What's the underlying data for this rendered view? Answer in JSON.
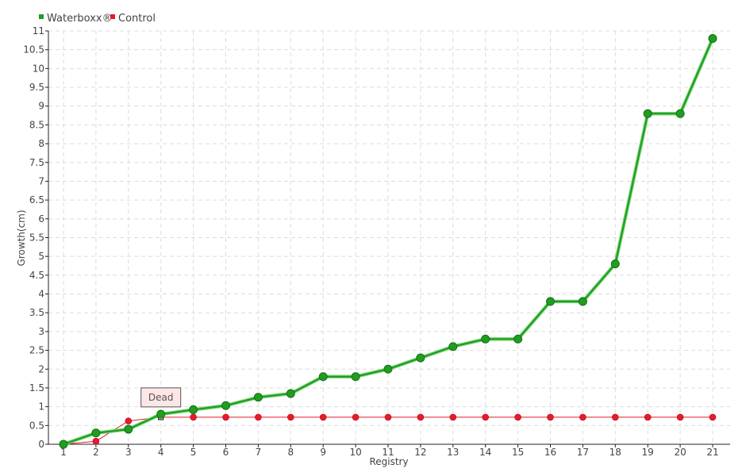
{
  "chart_data": {
    "type": "line",
    "xlabel": "Registry",
    "ylabel": "Growth(cm)",
    "x": [
      1,
      2,
      3,
      4,
      5,
      6,
      7,
      8,
      9,
      10,
      11,
      12,
      13,
      14,
      15,
      16,
      17,
      18,
      19,
      20,
      21
    ],
    "x_tick_labels": [
      "1",
      "2",
      "3",
      "4",
      "5",
      "6",
      "7",
      "8",
      "9",
      "10",
      "11",
      "12",
      "13",
      "14",
      "15",
      "16",
      "17",
      "18",
      "19",
      "20",
      "21"
    ],
    "ylim": [
      0,
      11
    ],
    "y_ticks": [
      0,
      0.5,
      1,
      1.5,
      2,
      2.5,
      3,
      3.5,
      4,
      4.5,
      5,
      5.5,
      6,
      6.5,
      7,
      7.5,
      8,
      8.5,
      9,
      9.5,
      10,
      10.5,
      11
    ],
    "y_tick_labels": [
      "0",
      "0.5",
      "1",
      "1.5",
      "2",
      "2.5",
      "3",
      "3.5",
      "4",
      "4.5",
      "5",
      "5.5",
      "6",
      "6.5",
      "7",
      "7.5",
      "8",
      "8.5",
      "9",
      "9.5",
      "10",
      "10.5",
      "11"
    ],
    "grid": true,
    "legend_position": "top-left",
    "series": [
      {
        "name": "Waterboxx®",
        "color": "#1f9e1f",
        "values": [
          0,
          0.3,
          0.4,
          0.8,
          0.92,
          1.03,
          1.25,
          1.35,
          1.8,
          1.8,
          2.0,
          2.3,
          2.6,
          2.8,
          2.8,
          3.8,
          3.8,
          4.8,
          8.8,
          8.8,
          10.8
        ]
      },
      {
        "name": "Control",
        "color": "#e8192c",
        "values": [
          0,
          0.08,
          0.62,
          0.72,
          0.72,
          0.72,
          0.72,
          0.72,
          0.72,
          0.72,
          0.72,
          0.72,
          0.72,
          0.72,
          0.72,
          0.72,
          0.72,
          0.72,
          0.72,
          0.72,
          0.72
        ]
      }
    ],
    "annotations": [
      {
        "text": "Dead",
        "series": "Control",
        "x": 4,
        "y": 0.72
      }
    ]
  }
}
